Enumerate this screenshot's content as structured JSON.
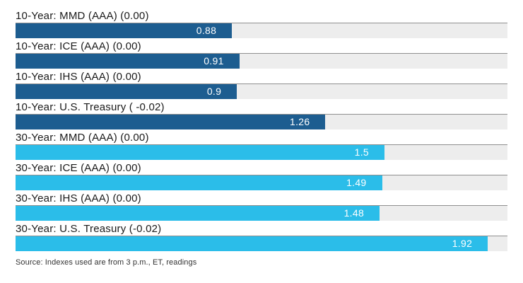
{
  "chart_data": {
    "type": "bar",
    "orientation": "horizontal",
    "title": "",
    "xlabel": "",
    "ylabel": "",
    "xlim": [
      0,
      2
    ],
    "grid": false,
    "legend": "none",
    "colors": {
      "ten_year": "#1d5d90",
      "thirty_year": "#2bbde9"
    },
    "categories": [
      "10-Year: MMD (AAA) (0.00)",
      "10-Year: ICE (AAA) (0.00)",
      "10-Year: IHS (AAA) (0.00)",
      "10-Year: U.S. Treasury ( -0.02)",
      "30-Year: MMD (AAA) (0.00)",
      "30-Year: ICE (AAA) (0.00)",
      "30-Year: IHS (AAA) (0.00)",
      "30-Year: U.S. Treasury (-0.02)"
    ],
    "values": [
      0.88,
      0.91,
      0.9,
      1.26,
      1.5,
      1.49,
      1.48,
      1.92
    ],
    "rows": [
      {
        "label": "10-Year: MMD (AAA) (0.00)",
        "value": 0.88,
        "display": "0.88",
        "color": "#1d5d90"
      },
      {
        "label": "10-Year: ICE (AAA) (0.00)",
        "value": 0.91,
        "display": "0.91",
        "color": "#1d5d90"
      },
      {
        "label": "10-Year: IHS (AAA) (0.00)",
        "value": 0.9,
        "display": "0.9",
        "color": "#1d5d90"
      },
      {
        "label": "10-Year: U.S. Treasury ( -0.02)",
        "value": 1.26,
        "display": "1.26",
        "color": "#1d5d90"
      },
      {
        "label": "30-Year: MMD (AAA) (0.00)",
        "value": 1.5,
        "display": "1.5",
        "color": "#2bbde9"
      },
      {
        "label": "30-Year: ICE (AAA) (0.00)",
        "value": 1.49,
        "display": "1.49",
        "color": "#2bbde9"
      },
      {
        "label": "30-Year: IHS (AAA) (0.00)",
        "value": 1.48,
        "display": "1.48",
        "color": "#2bbde9"
      },
      {
        "label": "30-Year: U.S. Treasury (-0.02)",
        "value": 1.92,
        "display": "1.92",
        "color": "#2bbde9"
      }
    ],
    "source": "Source: Indexes used are from 3 p.m., ET, readings"
  }
}
